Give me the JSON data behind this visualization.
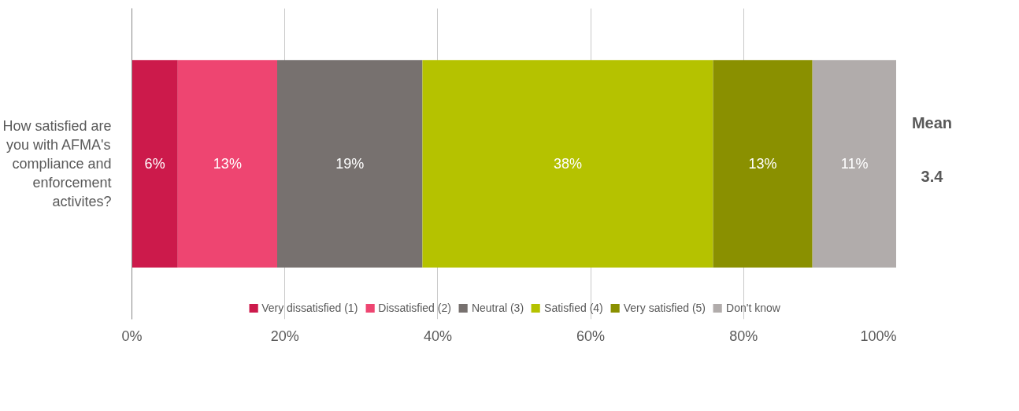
{
  "chart_data": {
    "type": "bar",
    "orientation": "horizontal",
    "stacked": true,
    "categories": [
      "How satisfied are you with AFMA's compliance and enforcement activites?"
    ],
    "series": [
      {
        "name": "Very dissatisfied (1)",
        "color": "#cc1a4b",
        "values": [
          6
        ],
        "value_labels": [
          "6%"
        ]
      },
      {
        "name": "Dissatisfied (2)",
        "color": "#ee4571",
        "values": [
          13
        ],
        "value_labels": [
          "13%"
        ]
      },
      {
        "name": "Neutral (3)",
        "color": "#77716f",
        "values": [
          19
        ],
        "value_labels": [
          "19%"
        ]
      },
      {
        "name": "Satisfied (4)",
        "color": "#b5c200",
        "values": [
          38
        ],
        "value_labels": [
          "38%"
        ]
      },
      {
        "name": "Very satisfied (5)",
        "color": "#8a9000",
        "values": [
          13
        ],
        "value_labels": [
          "13%"
        ]
      },
      {
        "name": "Don't know",
        "color": "#b1acab",
        "values": [
          11
        ],
        "value_labels": [
          "11%"
        ]
      }
    ],
    "xlim": [
      0,
      100
    ],
    "xticks": [
      {
        "value": 0,
        "label": "0%"
      },
      {
        "value": 20,
        "label": "20%"
      },
      {
        "value": 40,
        "label": "40%"
      },
      {
        "value": 60,
        "label": "60%"
      },
      {
        "value": 80,
        "label": "80%"
      },
      {
        "value": 100,
        "label": "100%"
      }
    ],
    "grid": "x",
    "legend": "bottom",
    "annotations": [
      "Mean",
      "3.4"
    ]
  }
}
